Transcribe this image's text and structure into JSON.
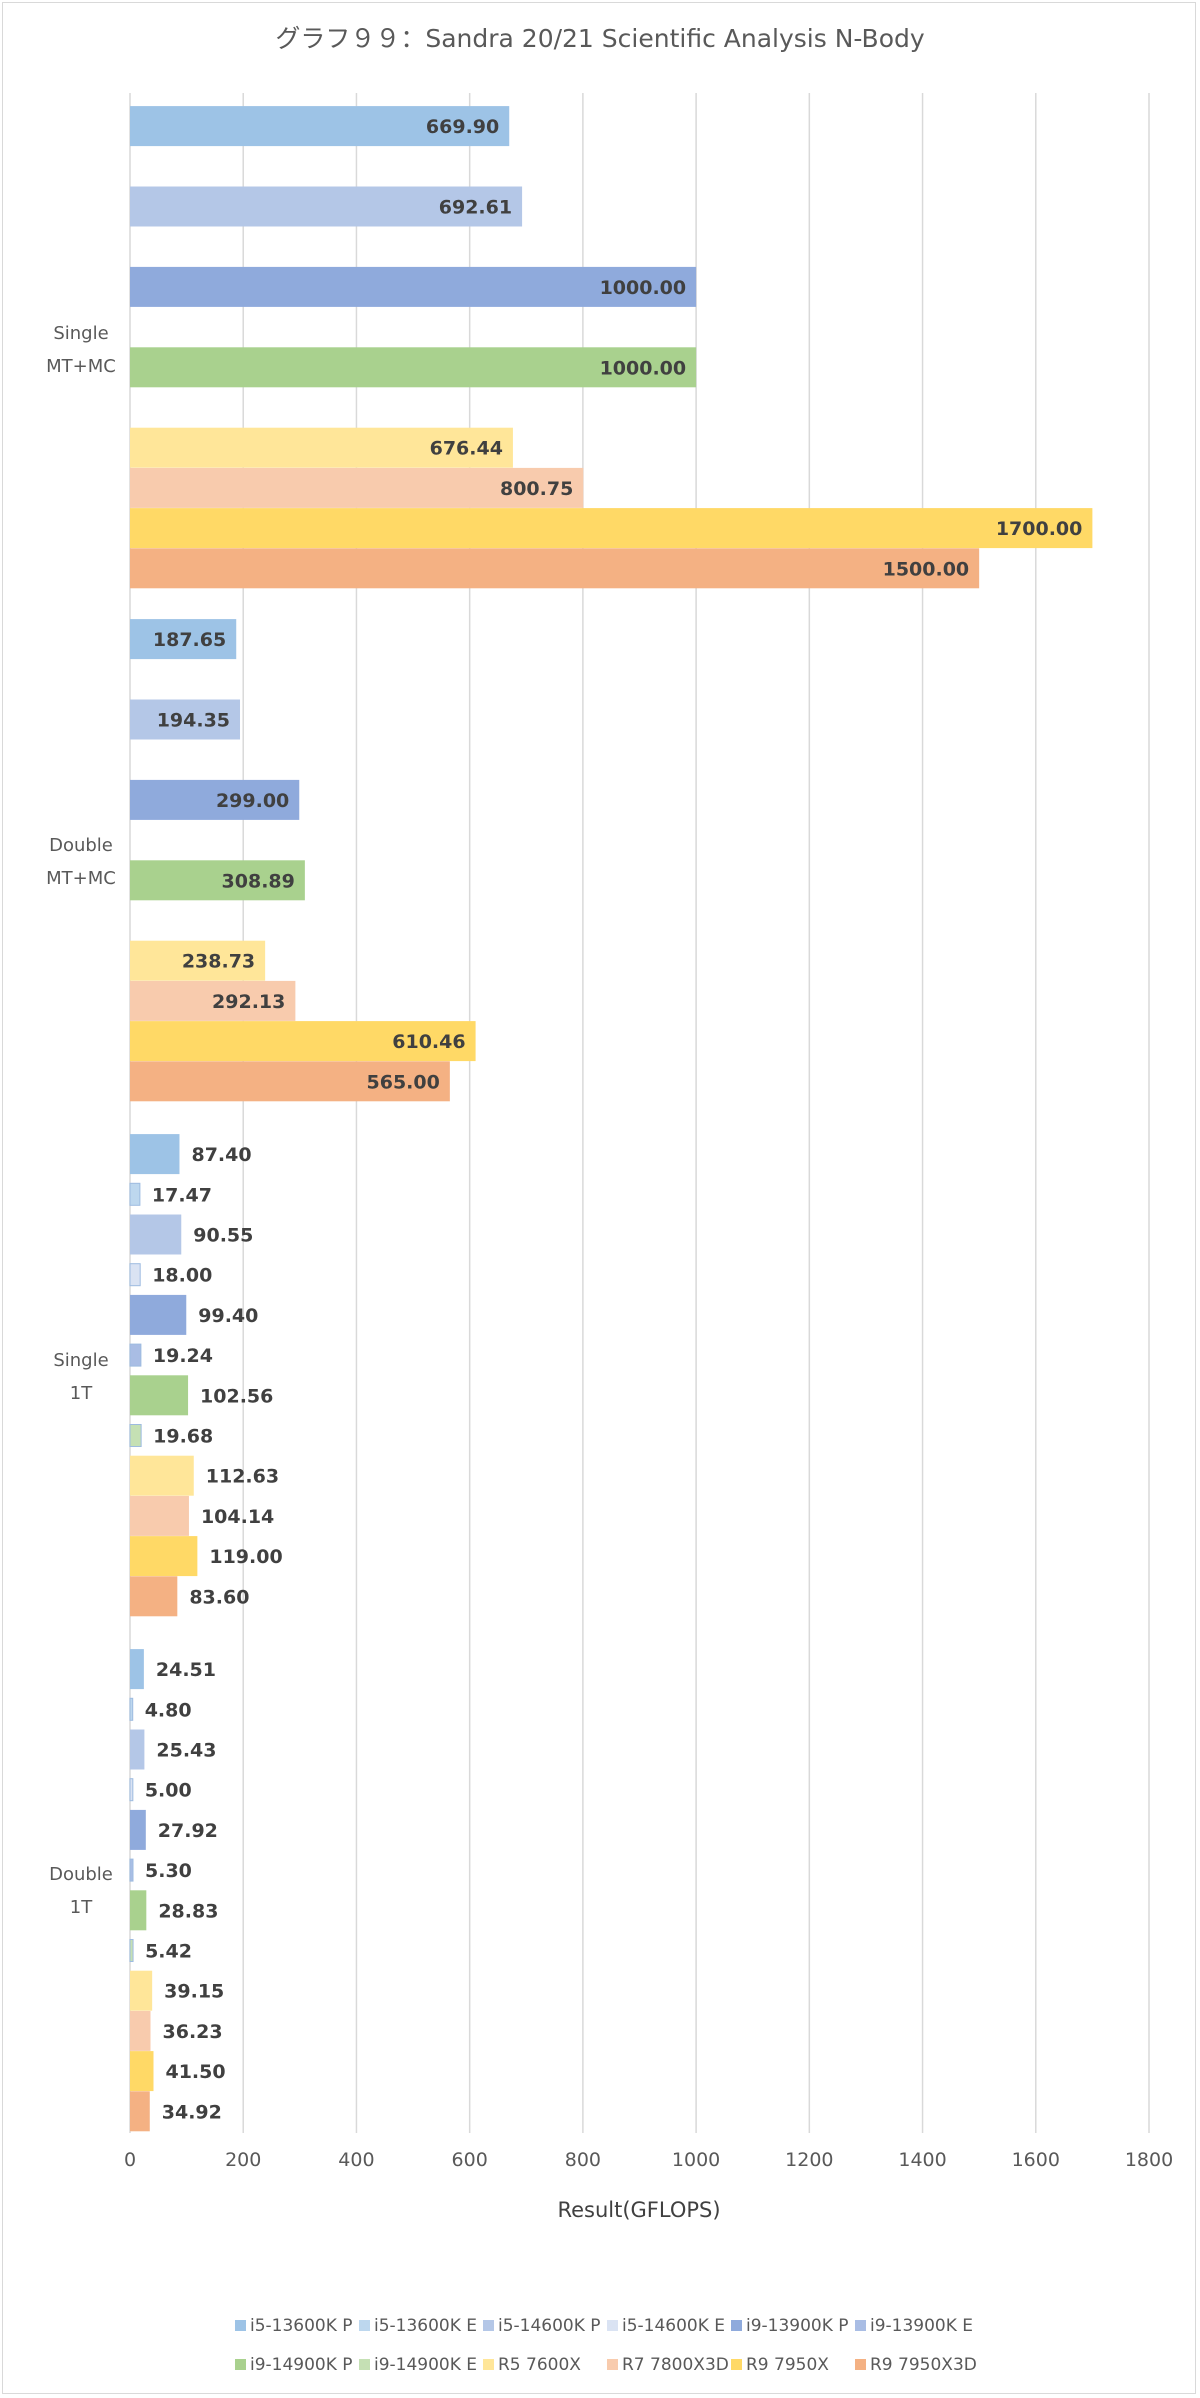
{
  "chart_data": {
    "type": "bar",
    "orientation": "horizontal",
    "title": "グラフ９９：Sandra 20/21 Scientific Analysis N-Body",
    "xlabel": "Result(GFLOPS)",
    "ylabel": "",
    "xlim": [
      0,
      1800
    ],
    "xticks": [
      "0",
      "200",
      "400",
      "600",
      "800",
      "1000",
      "1200",
      "1400",
      "1600",
      "1800"
    ],
    "grid": true,
    "legend_position": "bottom",
    "categories": [
      {
        "line1": "Single",
        "line2": "MT+MC"
      },
      {
        "line1": "Double",
        "line2": "MT+MC"
      },
      {
        "line1": "Single",
        "line2": "1T"
      },
      {
        "line1": "Double",
        "line2": "1T"
      }
    ],
    "series": [
      {
        "name": "i5-13600K P",
        "color": "#9dc3e6",
        "values": [
          669.9,
          187.65,
          87.4,
          24.51
        ],
        "labels": [
          "669.90",
          "187.65",
          "87.40",
          "24.51"
        ]
      },
      {
        "name": "i5-13600K E",
        "color": "#bdd7ee",
        "values": [
          null,
          null,
          17.47,
          4.8
        ],
        "labels": [
          "",
          "",
          "17.47",
          "4.80"
        ]
      },
      {
        "name": "i5-14600K P",
        "color": "#b4c7e7",
        "values": [
          692.61,
          194.35,
          90.55,
          25.43
        ],
        "labels": [
          "692.61",
          "194.35",
          "90.55",
          "25.43"
        ]
      },
      {
        "name": "i5-14600K E",
        "color": "#dae3f3",
        "values": [
          null,
          null,
          18.0,
          5.0
        ],
        "labels": [
          "",
          "",
          "18.00",
          "5.00"
        ]
      },
      {
        "name": "i9-13900K P",
        "color": "#8faadc",
        "values": [
          1000.0,
          299.0,
          99.4,
          27.92
        ],
        "labels": [
          "1000.00",
          "299.00",
          "99.40",
          "27.92"
        ]
      },
      {
        "name": "i9-13900K E",
        "color": "#a9bde4",
        "values": [
          null,
          null,
          19.24,
          5.3
        ],
        "labels": [
          "",
          "",
          "19.24",
          "5.30"
        ]
      },
      {
        "name": "i9-14900K P",
        "color": "#a9d18e",
        "values": [
          1000.0,
          308.89,
          102.56,
          28.83
        ],
        "labels": [
          "1000.00",
          "308.89",
          "102.56",
          "28.83"
        ]
      },
      {
        "name": "i9-14900K E",
        "color": "#c5e0b4",
        "values": [
          null,
          null,
          19.68,
          5.42
        ],
        "labels": [
          "",
          "",
          "19.68",
          "5.42"
        ]
      },
      {
        "name": "R5 7600X",
        "color": "#ffe699",
        "values": [
          676.44,
          238.73,
          112.63,
          39.15
        ],
        "labels": [
          "676.44",
          "238.73",
          "112.63",
          "39.15"
        ]
      },
      {
        "name": "R7 7800X3D",
        "color": "#f8cbad",
        "values": [
          800.75,
          292.13,
          104.14,
          36.23
        ],
        "labels": [
          "800.75",
          "292.13",
          "104.14",
          "36.23"
        ]
      },
      {
        "name": "R9 7950X",
        "color": "#ffd966",
        "values": [
          1700.0,
          610.46,
          119.0,
          41.5
        ],
        "labels": [
          "1700.00",
          "610.46",
          "119.00",
          "41.50"
        ]
      },
      {
        "name": "R9 7950X3D",
        "color": "#f4b183",
        "values": [
          1500.0,
          565.0,
          83.6,
          34.92
        ],
        "labels": [
          "1500.00",
          "565.00",
          "83.60",
          "34.92"
        ]
      }
    ]
  }
}
